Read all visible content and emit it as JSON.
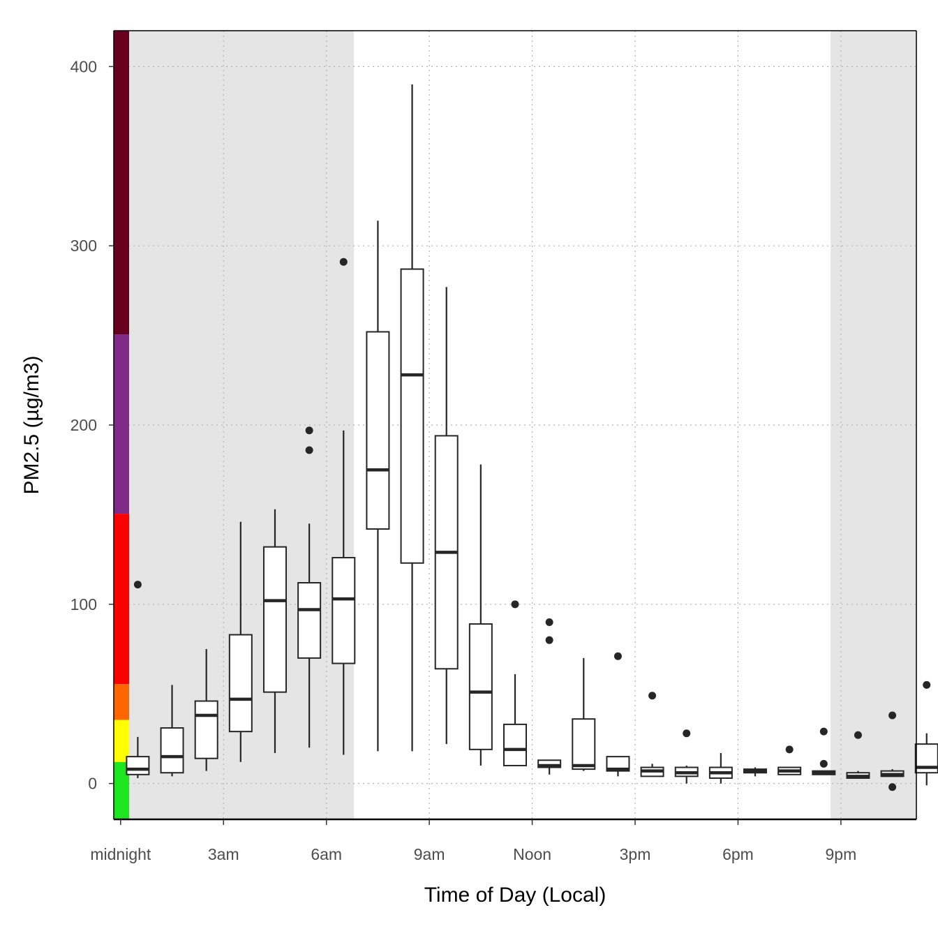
{
  "chart_data": {
    "type": "boxplot",
    "xlabel": "Time of Day (Local)",
    "ylabel": "PM2.5 (µg/m3)",
    "ylim": [
      -20,
      420
    ],
    "xlim": [
      -0.2,
      23.2
    ],
    "grid": true,
    "y_ticks": [
      0,
      100,
      200,
      300,
      400
    ],
    "x_ticks": [
      {
        "hour": 0,
        "label": "midnight"
      },
      {
        "hour": 3,
        "label": "3am"
      },
      {
        "hour": 6,
        "label": "6am"
      },
      {
        "hour": 9,
        "label": "9am"
      },
      {
        "hour": 12,
        "label": "Noon"
      },
      {
        "hour": 15,
        "label": "3pm"
      },
      {
        "hour": 18,
        "label": "6pm"
      },
      {
        "hour": 21,
        "label": "9pm"
      }
    ],
    "night_shading": [
      {
        "from": -0.2,
        "to": 6.8
      },
      {
        "from": 20.7,
        "to": 23.2
      }
    ],
    "aqi_color_bands": [
      {
        "from": -20,
        "to": 12,
        "color": "#1ee61e"
      },
      {
        "from": 12,
        "to": 35.5,
        "color": "#ffff00"
      },
      {
        "from": 35.5,
        "to": 55.5,
        "color": "#ff6600"
      },
      {
        "from": 55.5,
        "to": 150.5,
        "color": "#ff0000"
      },
      {
        "from": 150.5,
        "to": 250.5,
        "color": "#7f2a86"
      },
      {
        "from": 250.5,
        "to": 420,
        "color": "#68001f"
      }
    ],
    "boxes": [
      {
        "hour": 0.5,
        "whisker_low": 3,
        "q1": 5,
        "median": 8,
        "q3": 15,
        "whisker_high": 26,
        "outliers": [
          111
        ]
      },
      {
        "hour": 1.5,
        "whisker_low": 4,
        "q1": 6,
        "median": 15,
        "q3": 31,
        "whisker_high": 55,
        "outliers": []
      },
      {
        "hour": 2.5,
        "whisker_low": 7,
        "q1": 14,
        "median": 38,
        "q3": 46,
        "whisker_high": 75,
        "outliers": []
      },
      {
        "hour": 3.5,
        "whisker_low": 12,
        "q1": 29,
        "median": 47,
        "q3": 83,
        "whisker_high": 146,
        "outliers": []
      },
      {
        "hour": 4.5,
        "whisker_low": 17,
        "q1": 51,
        "median": 102,
        "q3": 132,
        "whisker_high": 153,
        "outliers": []
      },
      {
        "hour": 5.5,
        "whisker_low": 20,
        "q1": 70,
        "median": 97,
        "q3": 112,
        "whisker_high": 145,
        "outliers": [
          197,
          186
        ]
      },
      {
        "hour": 6.5,
        "whisker_low": 16,
        "q1": 67,
        "median": 103,
        "q3": 126,
        "whisker_high": 197,
        "outliers": [
          291
        ]
      },
      {
        "hour": 7.5,
        "whisker_low": 18,
        "q1": 142,
        "median": 175,
        "q3": 252,
        "whisker_high": 314,
        "outliers": []
      },
      {
        "hour": 8.5,
        "whisker_low": 18,
        "q1": 123,
        "median": 228,
        "q3": 287,
        "whisker_high": 390,
        "outliers": []
      },
      {
        "hour": 9.5,
        "whisker_low": 22,
        "q1": 64,
        "median": 129,
        "q3": 194,
        "whisker_high": 277,
        "outliers": []
      },
      {
        "hour": 10.5,
        "whisker_low": 10,
        "q1": 19,
        "median": 51,
        "q3": 89,
        "whisker_high": 178,
        "outliers": []
      },
      {
        "hour": 11.5,
        "whisker_low": 10,
        "q1": 10,
        "median": 19,
        "q3": 33,
        "whisker_high": 61,
        "outliers": [
          100
        ]
      },
      {
        "hour": 12.5,
        "whisker_low": 5,
        "q1": 9,
        "median": 10,
        "q3": 13,
        "whisker_high": 13,
        "outliers": [
          90,
          80
        ]
      },
      {
        "hour": 13.5,
        "whisker_low": 7,
        "q1": 8,
        "median": 10,
        "q3": 36,
        "whisker_high": 70,
        "outliers": []
      },
      {
        "hour": 14.5,
        "whisker_low": 4,
        "q1": 7,
        "median": 8,
        "q3": 15,
        "whisker_high": 15,
        "outliers": [
          71
        ]
      },
      {
        "hour": 15.5,
        "whisker_low": 4,
        "q1": 4,
        "median": 7,
        "q3": 9,
        "whisker_high": 11,
        "outliers": [
          49
        ]
      },
      {
        "hour": 16.5,
        "whisker_low": 0,
        "q1": 4,
        "median": 6,
        "q3": 9,
        "whisker_high": 10,
        "outliers": [
          28
        ]
      },
      {
        "hour": 17.5,
        "whisker_low": 0,
        "q1": 3,
        "median": 6,
        "q3": 9,
        "whisker_high": 17,
        "outliers": []
      },
      {
        "hour": 18.5,
        "whisker_low": 4,
        "q1": 6,
        "median": 7,
        "q3": 8,
        "whisker_high": 9,
        "outliers": []
      },
      {
        "hour": 19.5,
        "whisker_low": 5,
        "q1": 5,
        "median": 7,
        "q3": 9,
        "whisker_high": 9,
        "outliers": [
          19
        ]
      },
      {
        "hour": 20.5,
        "whisker_low": 5,
        "q1": 5,
        "median": 6,
        "q3": 7,
        "whisker_high": 7,
        "outliers": [
          29,
          11
        ]
      },
      {
        "hour": 21.5,
        "whisker_low": 3,
        "q1": 3,
        "median": 4,
        "q3": 6,
        "whisker_high": 7,
        "outliers": [
          27
        ]
      },
      {
        "hour": 22.5,
        "whisker_low": 4,
        "q1": 4,
        "median": 5,
        "q3": 7,
        "whisker_high": 8,
        "outliers": [
          38,
          -2
        ]
      },
      {
        "hour": 23.5,
        "whisker_low": -1,
        "q1": 6,
        "median": 9,
        "q3": 22,
        "whisker_high": 28,
        "outliers": [
          55
        ]
      }
    ]
  }
}
